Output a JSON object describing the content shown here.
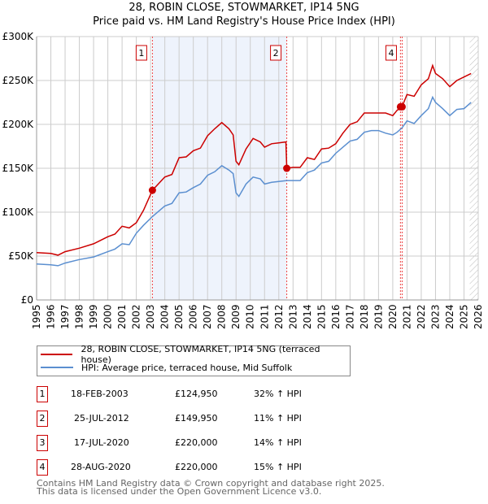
{
  "title_line1": "28, ROBIN CLOSE, STOWMARKET, IP14 5NG",
  "title_line2": "Price paid vs. HM Land Registry's House Price Index (HPI)",
  "chart_data": {
    "type": "line",
    "title": "28, ROBIN CLOSE, STOWMARKET, IP14 5NG - Price paid vs. HM Land Registry's House Price Index (HPI)",
    "xlabel": "",
    "ylabel": "",
    "xlim": [
      1995,
      2026
    ],
    "ylim": [
      0,
      300000
    ],
    "x_ticks": [
      "1995",
      "1996",
      "1997",
      "1998",
      "1999",
      "2000",
      "2001",
      "2002",
      "2003",
      "2004",
      "2005",
      "2006",
      "2007",
      "2008",
      "2009",
      "2010",
      "2011",
      "2012",
      "2013",
      "2014",
      "2015",
      "2016",
      "2017",
      "2018",
      "2019",
      "2020",
      "2021",
      "2022",
      "2023",
      "2024",
      "2025",
      "2026"
    ],
    "y_ticks": [
      {
        "v": 0,
        "label": "£0"
      },
      {
        "v": 50000,
        "label": "£50K"
      },
      {
        "v": 100000,
        "label": "£100K"
      },
      {
        "v": 150000,
        "label": "£150K"
      },
      {
        "v": 200000,
        "label": "£200K"
      },
      {
        "v": 250000,
        "label": "£250K"
      },
      {
        "v": 300000,
        "label": "£300K"
      }
    ],
    "grid": true,
    "shaded_period": [
      2003.13,
      2012.56
    ],
    "forecast_hatch_from": 2025.4,
    "colors": {
      "property": "#cc0000",
      "hpi": "#5b8fd0",
      "shade": "#eef3fc",
      "marker_line": "#ee4444"
    },
    "series": [
      {
        "name": "28, ROBIN CLOSE, STOWMARKET, IP14 5NG (terraced house)",
        "x": [
          1995,
          1996,
          1996.5,
          1997,
          1998,
          1999,
          2000,
          2000.5,
          2001,
          2001.5,
          2002,
          2002.5,
          2003.13,
          2004,
          2004.5,
          2005,
          2005.5,
          2006,
          2006.5,
          2007,
          2007.5,
          2008,
          2008.5,
          2008.8,
          2009,
          2009.2,
          2009.7,
          2010.2,
          2010.7,
          2011,
          2011.5,
          2012,
          2012.5,
          2012.56,
          2013,
          2013.5,
          2014,
          2014.5,
          2015,
          2015.5,
          2016,
          2016.5,
          2017,
          2017.5,
          2018,
          2018.5,
          2019,
          2019.5,
          2020,
          2020.3,
          2020.65,
          2021,
          2021.5,
          2022,
          2022.5,
          2022.8,
          2023,
          2023.5,
          2024,
          2024.5,
          2025,
          2025.5
        ],
        "values": [
          54,
          53,
          51,
          55,
          59,
          64,
          72,
          75,
          84,
          82,
          88,
          102,
          124.95,
          140,
          143,
          162,
          163,
          170,
          173,
          187,
          195,
          202,
          195,
          188,
          158,
          154,
          172,
          184,
          180,
          174,
          178,
          179,
          180,
          149.95,
          151,
          151,
          162,
          160,
          172,
          173,
          178,
          190,
          200,
          203,
          213,
          213,
          213,
          213,
          210,
          216,
          220,
          234,
          232,
          245,
          252,
          267,
          258,
          252,
          243,
          250,
          254,
          258
        ]
      },
      {
        "name": "HPI: Average price, terraced house, Mid Suffolk",
        "x": [
          1995,
          1996,
          1996.5,
          1997,
          1998,
          1999,
          2000,
          2000.5,
          2001,
          2001.5,
          2002,
          2002.5,
          2003.13,
          2004,
          2004.5,
          2005,
          2005.5,
          2006,
          2006.5,
          2007,
          2007.5,
          2008,
          2008.5,
          2008.8,
          2009,
          2009.2,
          2009.7,
          2010.2,
          2010.7,
          2011,
          2011.5,
          2012,
          2012.56,
          2013,
          2013.5,
          2014,
          2014.5,
          2015,
          2015.5,
          2016,
          2016.5,
          2017,
          2017.5,
          2018,
          2018.5,
          2019,
          2019.5,
          2020,
          2020.3,
          2020.65,
          2021,
          2021.5,
          2022,
          2022.5,
          2022.8,
          2023,
          2023.5,
          2024,
          2024.5,
          2025,
          2025.5
        ],
        "values": [
          41,
          40,
          39,
          42,
          46,
          49,
          55,
          58,
          64,
          63,
          76,
          85,
          95,
          107,
          110,
          122,
          123,
          128,
          132,
          142,
          146,
          153,
          148,
          144,
          122,
          118,
          132,
          140,
          138,
          132,
          134,
          135,
          136,
          136,
          136,
          145,
          148,
          156,
          158,
          167,
          174,
          181,
          183,
          191,
          193,
          193,
          190,
          188,
          191,
          196,
          204,
          201,
          210,
          218,
          231,
          225,
          218,
          210,
          217,
          218,
          225
        ]
      }
    ],
    "series_unit": "thousand GBP",
    "sales": [
      {
        "label": "1",
        "x": 2003.13,
        "price": 124.95,
        "show_box": true
      },
      {
        "label": "2",
        "x": 2012.56,
        "price": 149.95,
        "show_box": true
      },
      {
        "label": "3",
        "x": 2020.54,
        "price": 220,
        "show_box": false
      },
      {
        "label": "4",
        "x": 2020.66,
        "price": 220,
        "show_box": true
      }
    ]
  },
  "legend": [
    {
      "label": "28, ROBIN CLOSE, STOWMARKET, IP14 5NG (terraced house)",
      "color": "#cc0000"
    },
    {
      "label": "HPI: Average price, terraced house, Mid Suffolk",
      "color": "#5b8fd0"
    }
  ],
  "transactions": [
    {
      "num": "1",
      "date": "18-FEB-2003",
      "price": "£124,950",
      "hpi": "32% ↑ HPI"
    },
    {
      "num": "2",
      "date": "25-JUL-2012",
      "price": "£149,950",
      "hpi": "11% ↑ HPI"
    },
    {
      "num": "3",
      "date": "17-JUL-2020",
      "price": "£220,000",
      "hpi": "14% ↑ HPI"
    },
    {
      "num": "4",
      "date": "28-AUG-2020",
      "price": "£220,000",
      "hpi": "15% ↑ HPI"
    }
  ],
  "footer_line1": "Contains HM Land Registry data © Crown copyright and database right 2025.",
  "footer_line2": "This data is licensed under the Open Government Licence v3.0."
}
